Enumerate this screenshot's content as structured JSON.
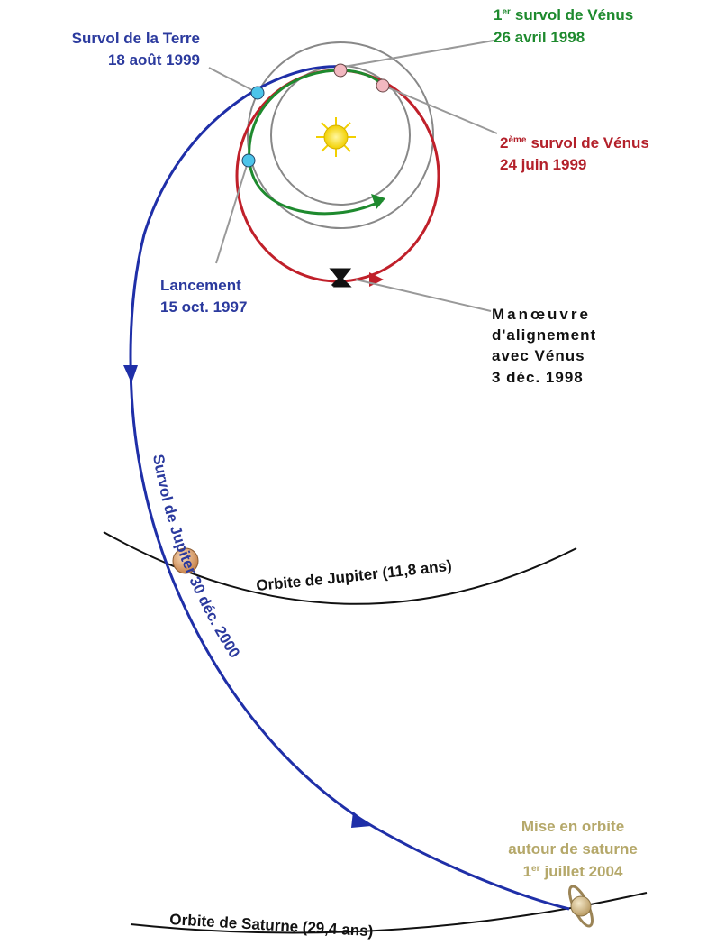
{
  "earth_flyby": {
    "title": "Survol de la Terre",
    "date": "18 août 1999"
  },
  "venus_flyby_1": {
    "ordinal": "1",
    "ordinal_suffix": "er",
    "title": "survol de Vénus",
    "date": "26 avril 1998"
  },
  "venus_flyby_2": {
    "ordinal": "2",
    "ordinal_suffix": "ème",
    "title": "survol de Vénus",
    "date": "24 juin 1999"
  },
  "launch": {
    "title": "Lancement",
    "date": "15 oct. 1997"
  },
  "maneuver": {
    "lines": [
      "Manœuvre",
      "d'alignement",
      "avec Vénus",
      "3 déc. 1998"
    ]
  },
  "jupiter_flyby": {
    "label": "Survol de Jupiter 30 déc. 2000"
  },
  "jupiter_orbit": {
    "label": "Orbite de Jupiter (11,8 ans)"
  },
  "saturn_arrival": {
    "lines": [
      "Mise en orbite",
      "autour de saturne"
    ],
    "ordinal": "1",
    "ordinal_suffix": "er",
    "date": "juillet 2004"
  },
  "saturn_orbit": {
    "label": "Orbite de Saturne (29,4 ans)"
  }
}
